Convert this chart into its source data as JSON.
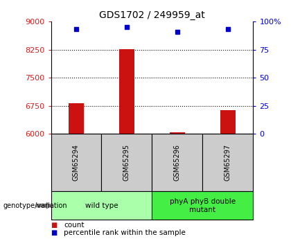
{
  "title": "GDS1702 / 249959_at",
  "samples": [
    "GSM65294",
    "GSM65295",
    "GSM65296",
    "GSM65297"
  ],
  "count_values": [
    6820,
    8270,
    6035,
    6640
  ],
  "percentile_values": [
    93,
    95,
    91,
    93
  ],
  "ylim_left": [
    6000,
    9000
  ],
  "ylim_right": [
    0,
    100
  ],
  "yticks_left": [
    6000,
    6750,
    7500,
    8250,
    9000
  ],
  "yticks_right": [
    0,
    25,
    50,
    75,
    100
  ],
  "ytick_labels_left": [
    "6000",
    "6750",
    "7500",
    "8250",
    "9000"
  ],
  "ytick_labels_right": [
    "0",
    "25",
    "50",
    "75",
    "100%"
  ],
  "groups": [
    {
      "label": "wild type",
      "samples": [
        0,
        1
      ],
      "color": "#aaffaa"
    },
    {
      "label": "phyA phyB double\nmutant",
      "samples": [
        2,
        3
      ],
      "color": "#44ee44"
    }
  ],
  "bar_color": "#cc1111",
  "marker_color": "#0000cc",
  "left_tick_color": "#cc2222",
  "right_tick_color": "#0000cc",
  "grid_color": "#000000",
  "box_color": "#cccccc",
  "legend_count_color": "#cc1111",
  "legend_pct_color": "#0000cc",
  "genotype_label": "genotype/variation",
  "arrow_color": "#888888",
  "bar_width": 0.3
}
